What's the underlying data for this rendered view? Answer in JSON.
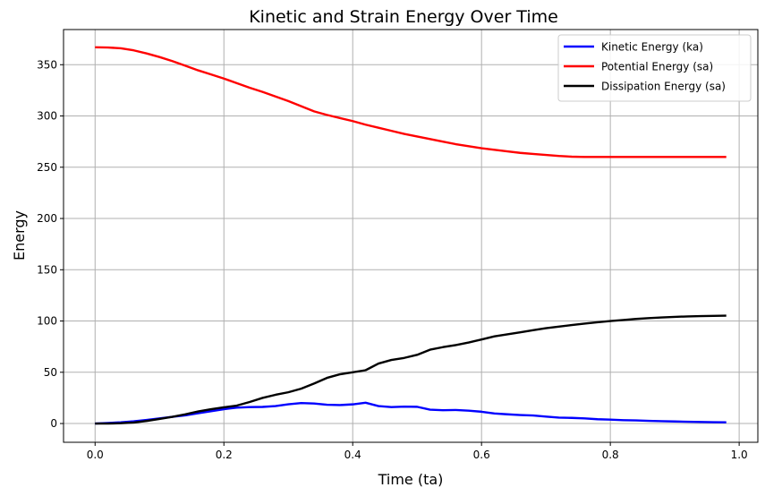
{
  "chart_data": {
    "type": "line",
    "title": "Kinetic and Strain Energy Over Time",
    "xlabel": "Time (ta)",
    "ylabel": "Energy",
    "xlim": [
      -0.049,
      1.029
    ],
    "ylim": [
      -18.3,
      384.3
    ],
    "xticks": [
      0.0,
      0.2,
      0.4,
      0.6,
      0.8,
      1.0
    ],
    "xtick_labels": [
      "0.0",
      "0.2",
      "0.4",
      "0.6",
      "0.8",
      "1.0"
    ],
    "yticks": [
      0,
      50,
      100,
      150,
      200,
      250,
      300,
      350
    ],
    "ytick_labels": [
      "0",
      "50",
      "100",
      "150",
      "200",
      "250",
      "300",
      "350"
    ],
    "grid": true,
    "legend_position": "top-right",
    "x": [
      0.0,
      0.02,
      0.04,
      0.06,
      0.08,
      0.1,
      0.12,
      0.14,
      0.16,
      0.18,
      0.2,
      0.22,
      0.24,
      0.26,
      0.28,
      0.3,
      0.32,
      0.34,
      0.36,
      0.38,
      0.4,
      0.42,
      0.44,
      0.46,
      0.48,
      0.5,
      0.52,
      0.54,
      0.56,
      0.58,
      0.6,
      0.62,
      0.64,
      0.66,
      0.68,
      0.7,
      0.72,
      0.74,
      0.76,
      0.78,
      0.8,
      0.82,
      0.84,
      0.86,
      0.88,
      0.9,
      0.92,
      0.94,
      0.96,
      0.98
    ],
    "series": [
      {
        "name": "Kinetic Energy (ka)",
        "color": "#0000ff",
        "values": [
          0.0,
          0.5,
          1.2,
          2.2,
          3.5,
          5.0,
          6.5,
          8.0,
          10.0,
          12.0,
          14.0,
          15.5,
          16.0,
          16.2,
          17.0,
          18.8,
          20.0,
          19.5,
          18.3,
          18.0,
          18.7,
          20.3,
          17.0,
          16.0,
          16.5,
          16.3,
          13.5,
          13.0,
          13.2,
          12.5,
          11.5,
          9.8,
          9.0,
          8.3,
          7.8,
          6.8,
          5.8,
          5.5,
          5.0,
          4.2,
          3.8,
          3.3,
          3.0,
          2.6,
          2.3,
          2.0,
          1.7,
          1.5,
          1.3,
          1.2
        ]
      },
      {
        "name": "Potential Energy (sa)",
        "color": "#ff0000",
        "values": [
          367.0,
          366.8,
          366.0,
          364.0,
          361.0,
          357.5,
          353.5,
          349.0,
          344.5,
          340.5,
          336.5,
          332.0,
          327.5,
          323.5,
          319.0,
          314.5,
          309.5,
          304.5,
          301.0,
          298.0,
          295.0,
          291.5,
          288.5,
          285.5,
          282.5,
          280.0,
          277.5,
          275.0,
          272.5,
          270.5,
          268.5,
          267.0,
          265.5,
          264.0,
          263.0,
          262.0,
          261.0,
          260.3,
          260.0,
          260.0,
          260.0,
          260.0,
          260.0,
          260.0,
          260.0,
          260.0,
          260.0,
          260.0,
          260.0,
          260.0
        ]
      },
      {
        "name": "Dissipation Energy (sa)",
        "color": "#000000",
        "values": [
          0.0,
          0.0,
          0.3,
          1.0,
          2.5,
          4.5,
          6.5,
          9.0,
          11.8,
          14.0,
          15.8,
          17.5,
          21.0,
          25.0,
          28.0,
          30.5,
          34.0,
          39.0,
          44.5,
          48.0,
          50.0,
          52.0,
          58.5,
          62.0,
          64.0,
          67.0,
          72.0,
          74.5,
          76.5,
          79.0,
          82.0,
          85.0,
          87.0,
          89.0,
          91.0,
          93.0,
          94.5,
          96.0,
          97.5,
          98.8,
          100.0,
          101.0,
          102.0,
          102.8,
          103.5,
          104.0,
          104.5,
          104.8,
          105.0,
          105.2
        ]
      }
    ]
  }
}
